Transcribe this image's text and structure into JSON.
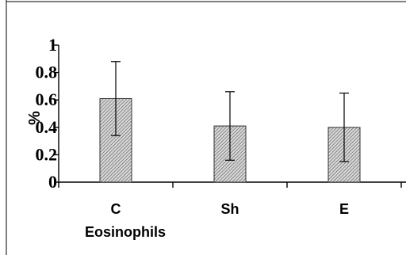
{
  "chart_data": {
    "type": "bar",
    "categories": [
      "C",
      "Sh",
      "E"
    ],
    "values": [
      0.61,
      0.41,
      0.4
    ],
    "errors": [
      0.27,
      0.25,
      0.25
    ],
    "ylim": [
      0,
      1
    ],
    "yticks": [
      "0",
      "0.2",
      "0.4",
      "0.6",
      "0.8",
      "1"
    ],
    "ylabel": "%",
    "xlabel": "Eosinophils",
    "title": "",
    "grid": false,
    "bar_fill": "hatched gray",
    "bar_color": "#9a9a9a"
  }
}
